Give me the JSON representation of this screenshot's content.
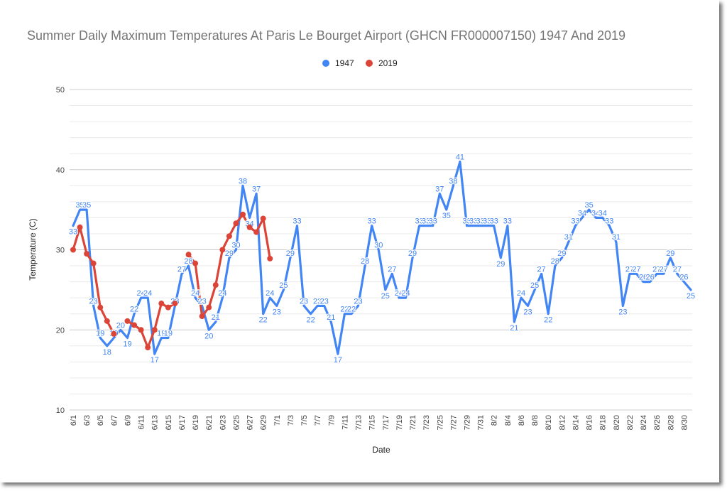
{
  "chart_data": {
    "type": "line",
    "title": "Summer Daily Maximum Temperatures At Paris Le Bourget Airport (GHCN FR000007150) 1947 And 2019",
    "xlabel": "Date",
    "ylabel": "Temperature (C)",
    "ylim": [
      10,
      50
    ],
    "yticks": [
      "10",
      "20",
      "30",
      "40",
      "50"
    ],
    "grid": true,
    "legend_position": "top",
    "x": [
      "6/1",
      "6/2",
      "6/3",
      "6/4",
      "6/5",
      "6/6",
      "6/7",
      "6/8",
      "6/9",
      "6/10",
      "6/11",
      "6/12",
      "6/13",
      "6/14",
      "6/15",
      "6/16",
      "6/17",
      "6/18",
      "6/19",
      "6/20",
      "6/21",
      "6/22",
      "6/23",
      "6/24",
      "6/25",
      "6/26",
      "6/27",
      "6/28",
      "6/29",
      "6/30",
      "7/1",
      "7/2",
      "7/3",
      "7/4",
      "7/5",
      "7/6",
      "7/7",
      "7/8",
      "7/9",
      "7/10",
      "7/11",
      "7/12",
      "7/13",
      "7/14",
      "7/15",
      "7/16",
      "7/17",
      "7/18",
      "7/19",
      "7/20",
      "7/21",
      "7/22",
      "7/23",
      "7/24",
      "7/25",
      "7/26",
      "7/27",
      "7/28",
      "7/29",
      "7/30",
      "7/31",
      "8/1",
      "8/2",
      "8/3",
      "8/4",
      "8/5",
      "8/6",
      "8/7",
      "8/8",
      "8/9",
      "8/10",
      "8/11",
      "8/12",
      "8/13",
      "8/14",
      "8/15",
      "8/16",
      "8/17",
      "8/18",
      "8/19",
      "8/20",
      "8/21",
      "8/22",
      "8/23",
      "8/24",
      "8/25",
      "8/26",
      "8/27",
      "8/28",
      "8/29",
      "8/30",
      "8/31"
    ],
    "xtick_labels": [
      "6/1",
      "6/3",
      "6/5",
      "6/7",
      "6/9",
      "6/11",
      "6/13",
      "6/15",
      "6/17",
      "6/19",
      "6/21",
      "6/23",
      "6/25",
      "6/27",
      "6/29",
      "7/1",
      "7/3",
      "7/5",
      "7/7",
      "7/9",
      "7/11",
      "7/13",
      "7/15",
      "7/17",
      "7/19",
      "7/21",
      "7/23",
      "7/25",
      "7/27",
      "7/29",
      "7/31",
      "8/2",
      "8/4",
      "8/6",
      "8/8",
      "8/10",
      "8/12",
      "8/14",
      "8/16",
      "8/18",
      "8/20",
      "8/22",
      "8/24",
      "8/26",
      "8/28",
      "8/30"
    ],
    "series": [
      {
        "name": "1947",
        "color": "#4285f4",
        "values": [
          33,
          35,
          35,
          23,
          19,
          18,
          19,
          20,
          19,
          22,
          24,
          24,
          17,
          19,
          19,
          23,
          27,
          28,
          24,
          23,
          20,
          21,
          24,
          29,
          30,
          38,
          34,
          37,
          22,
          24,
          23,
          25,
          29,
          33,
          23,
          22,
          23,
          23,
          21,
          17,
          22,
          22,
          23,
          28,
          33,
          30,
          25,
          27,
          24,
          24,
          29,
          33,
          33,
          33,
          37,
          35,
          38,
          41,
          33,
          33,
          33,
          33,
          33,
          29,
          33,
          21,
          24,
          23,
          25,
          27,
          22,
          28,
          29,
          31,
          33,
          34,
          35,
          34,
          34,
          33,
          31,
          23,
          27,
          27,
          26,
          26,
          27,
          27,
          29,
          27,
          26,
          25
        ]
      },
      {
        "name": "2019",
        "color": "#db4437",
        "values": [
          30,
          32.8,
          29.5,
          28.3,
          22.8,
          21.1,
          19.5,
          null,
          21.1,
          20.6,
          20,
          17.8,
          20,
          23.3,
          22.8,
          23.3,
          null,
          29.4,
          28.3,
          21.7,
          22.8,
          25.6,
          30,
          31.7,
          33.3,
          34.4,
          32.8,
          32.2,
          33.9,
          28.9,
          null,
          null,
          null,
          null,
          null,
          null,
          null,
          null,
          null,
          null,
          null,
          null,
          null,
          null,
          null,
          null,
          null,
          null,
          null,
          null,
          null,
          null,
          null,
          null,
          null,
          null,
          null,
          null,
          null,
          null,
          null,
          null,
          null,
          null,
          null,
          null,
          null,
          null,
          null,
          null,
          null,
          null,
          null,
          null,
          null,
          null,
          null,
          null,
          null,
          null,
          null,
          null,
          null,
          null,
          null,
          null,
          null,
          null,
          null,
          null,
          null,
          null
        ]
      }
    ]
  }
}
